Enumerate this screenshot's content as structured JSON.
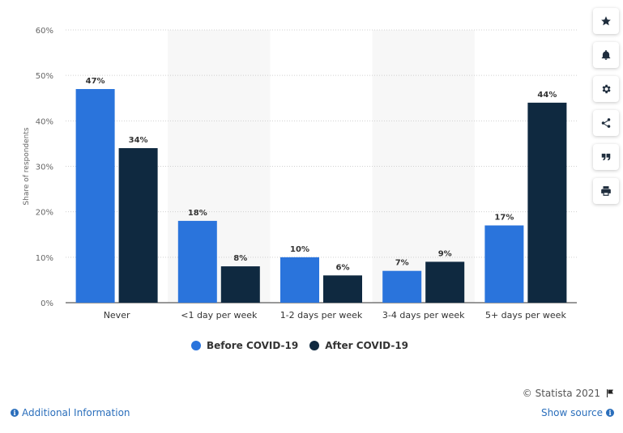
{
  "chart_data": {
    "type": "bar",
    "categories": [
      "Never",
      "<1 day per week",
      "1-2 days per week",
      "3-4 days per week",
      "5+ days per week"
    ],
    "series": [
      {
        "name": "Before COVID-19",
        "values": [
          47,
          18,
          10,
          7,
          17
        ],
        "color": "#2a74dc"
      },
      {
        "name": "After COVID-19",
        "values": [
          34,
          8,
          6,
          9,
          44
        ],
        "color": "#0f2940"
      }
    ],
    "ylabel": "Share of respondents",
    "ylim": [
      0,
      60
    ],
    "yticks": [
      "0%",
      "10%",
      "20%",
      "30%",
      "40%",
      "50%",
      "60%"
    ],
    "value_suffix": "%",
    "grid": true,
    "legend_position": "bottom"
  },
  "legend": {
    "before_label": "Before COVID-19",
    "after_label": "After COVID-19",
    "before_color": "#2a74dc",
    "after_color": "#0f2940"
  },
  "toolbar": {
    "icons": [
      "star-icon",
      "bell-icon",
      "gear-icon",
      "share-icon",
      "quote-icon",
      "print-icon"
    ]
  },
  "credit": {
    "text": "© Statista 2021"
  },
  "footer": {
    "additional_info": "Additional Information",
    "show_source": "Show source"
  }
}
